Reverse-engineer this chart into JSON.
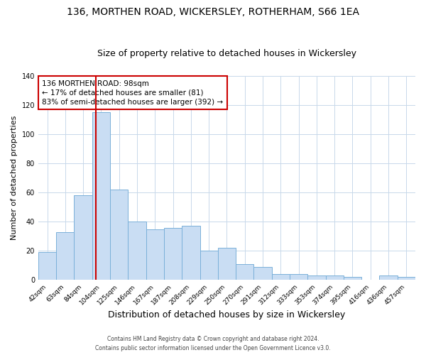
{
  "title1": "136, MORTHEN ROAD, WICKERSLEY, ROTHERHAM, S66 1EA",
  "title2": "Size of property relative to detached houses in Wickersley",
  "xlabel": "Distribution of detached houses by size in Wickersley",
  "ylabel": "Number of detached properties",
  "footer1": "Contains HM Land Registry data © Crown copyright and database right 2024.",
  "footer2": "Contains public sector information licensed under the Open Government Licence v3.0.",
  "bin_labels": [
    "42sqm",
    "63sqm",
    "84sqm",
    "104sqm",
    "125sqm",
    "146sqm",
    "167sqm",
    "187sqm",
    "208sqm",
    "229sqm",
    "250sqm",
    "270sqm",
    "291sqm",
    "312sqm",
    "333sqm",
    "353sqm",
    "374sqm",
    "395sqm",
    "416sqm",
    "436sqm",
    "457sqm"
  ],
  "bar_values": [
    19,
    33,
    58,
    115,
    62,
    40,
    35,
    36,
    37,
    20,
    22,
    11,
    9,
    4,
    4,
    3,
    3,
    2,
    0,
    3,
    2
  ],
  "bar_color": "#c9ddf3",
  "bar_edge_color": "#7ab0d9",
  "vline_x": 3,
  "vline_color": "#cc0000",
  "annotation_title": "136 MORTHEN ROAD: 98sqm",
  "annotation_line1": "← 17% of detached houses are smaller (81)",
  "annotation_line2": "83% of semi-detached houses are larger (392) →",
  "annotation_box_color": "#ffffff",
  "annotation_box_edge": "#cc0000",
  "ylim": [
    0,
    140
  ],
  "yticks": [
    0,
    20,
    40,
    60,
    80,
    100,
    120,
    140
  ],
  "bg_color": "#ffffff",
  "grid_color": "#c8d8ea",
  "title1_fontsize": 10,
  "title2_fontsize": 9,
  "xlabel_fontsize": 9,
  "ylabel_fontsize": 8,
  "annotation_fontsize": 7.5,
  "tick_fontsize": 6.5,
  "footer_fontsize": 5.5
}
